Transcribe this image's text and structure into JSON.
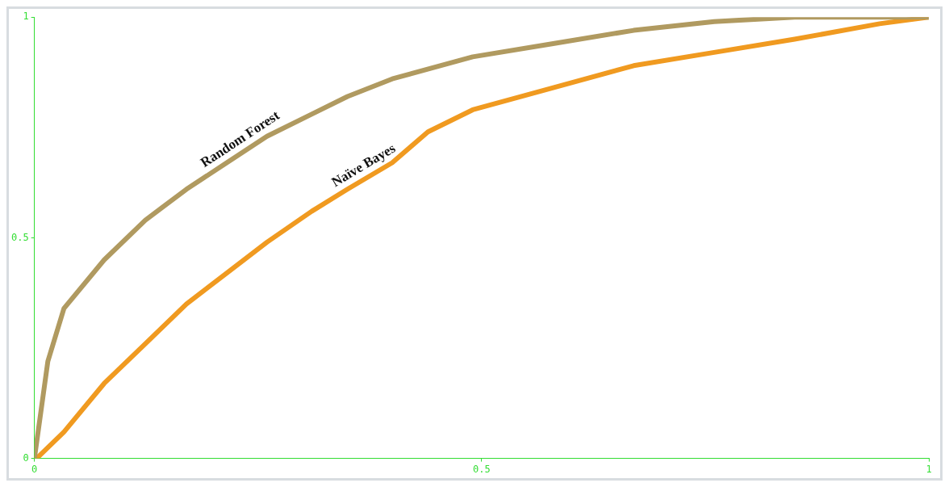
{
  "chart_data": {
    "type": "line",
    "xlim": [
      0,
      1
    ],
    "ylim": [
      0,
      1
    ],
    "xticks": [
      0,
      0.5,
      1
    ],
    "yticks": [
      0,
      0.5,
      1
    ],
    "grid": false,
    "legend": false,
    "marker": "none",
    "line_style": "solid",
    "series": [
      {
        "name": "Random Forest",
        "color": "#b09a60",
        "x": [
          0,
          0.015,
          0.033,
          0.078,
          0.124,
          0.17,
          0.215,
          0.26,
          0.31,
          0.35,
          0.4,
          0.49,
          0.58,
          0.67,
          0.76,
          0.85,
          1
        ],
        "values": [
          0,
          0.22,
          0.34,
          0.45,
          0.54,
          0.61,
          0.67,
          0.73,
          0.78,
          0.82,
          0.86,
          0.91,
          0.94,
          0.97,
          0.99,
          1,
          1
        ]
      },
      {
        "name": "Naïve Bayes",
        "color": "#f09a20",
        "x": [
          0,
          0.005,
          0.033,
          0.078,
          0.124,
          0.17,
          0.215,
          0.26,
          0.31,
          0.35,
          0.4,
          0.44,
          0.49,
          0.58,
          0.67,
          0.76,
          0.85,
          0.945,
          1
        ],
        "values": [
          0,
          0.005,
          0.06,
          0.17,
          0.26,
          0.35,
          0.42,
          0.49,
          0.56,
          0.61,
          0.67,
          0.74,
          0.79,
          0.84,
          0.89,
          0.92,
          0.95,
          0.985,
          1
        ]
      }
    ]
  }
}
